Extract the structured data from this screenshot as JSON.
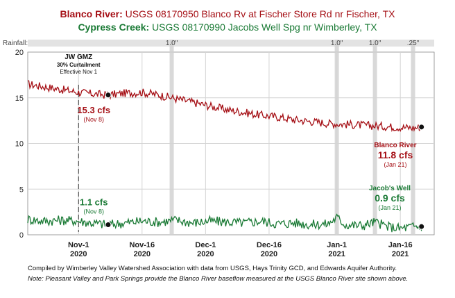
{
  "title": {
    "line1_name": "Blanco River:",
    "line1_text": "USGS 08170950 Blanco Rv at Fischer Store Rd nr Fischer, TX",
    "line2_name": "Cypress Creek:",
    "line2_text": "USGS 08170990 Jacobs Well Spg nr Wimberley, TX"
  },
  "colors": {
    "blanco": "#a50f15",
    "jacobs": "#1a7a35",
    "rain_band": "#cfcfcf",
    "rain_strip": "#e3e3e3",
    "grid": "#d4d4d4"
  },
  "notes": {
    "compiled": "Compiled by Wimberley Valley Watershed Association with data from USGS, Hays Trinity GCD, and Edwards Aquifer Authority.",
    "note_label": "Note:",
    "note_text": "Pleasant Valley and Park Springs provide the Blanco River baseflow measured at the USGS Blanco River site shown above."
  },
  "chart_data": {
    "type": "line",
    "x_unit": "date",
    "x_range": [
      "2020-10-20",
      "2021-01-24"
    ],
    "ylim": [
      0,
      20
    ],
    "y_ticks": [
      0,
      5,
      10,
      15,
      20
    ],
    "grid": true,
    "rainfall_label": "Rainfall:",
    "rain_events": [
      {
        "date": "2020-11-23",
        "label": "1.0\""
      },
      {
        "date": "2021-01-01",
        "label": "1.0\""
      },
      {
        "date": "2021-01-10",
        "label": "1.0\""
      },
      {
        "date": "2021-01-19",
        "label": ".25\""
      }
    ],
    "x_ticks": [
      {
        "date": "2020-11-01",
        "line1": "Nov-1",
        "line2": "2020"
      },
      {
        "date": "2020-11-16",
        "line1": "Nov-16",
        "line2": "2020"
      },
      {
        "date": "2020-12-01",
        "line1": "Dec-1",
        "line2": "2020"
      },
      {
        "date": "2020-12-16",
        "line1": "Dec-16",
        "line2": "2020"
      },
      {
        "date": "2021-01-01",
        "line1": "Jan-1",
        "line2": "2021"
      },
      {
        "date": "2021-01-16",
        "line1": "Jan-16",
        "line2": "2021"
      }
    ],
    "gmz_event": {
      "date": "2020-11-01",
      "title": "JW GMZ",
      "subtitle": "30% Curtailment",
      "detail": "Effective Nov 1"
    },
    "series": [
      {
        "name": "Blanco River",
        "color": "#a50f15",
        "points": [
          [
            "2020-10-20",
            16.5
          ],
          [
            "2020-10-24",
            16.2
          ],
          [
            "2020-10-28",
            15.9
          ],
          [
            "2020-11-01",
            15.6
          ],
          [
            "2020-11-05",
            15.4
          ],
          [
            "2020-11-08",
            15.3
          ],
          [
            "2020-11-12",
            15.5
          ],
          [
            "2020-11-16",
            15.6
          ],
          [
            "2020-11-20",
            15.3
          ],
          [
            "2020-11-24",
            14.9
          ],
          [
            "2020-11-28",
            14.5
          ],
          [
            "2020-12-02",
            14.1
          ],
          [
            "2020-12-06",
            13.7
          ],
          [
            "2020-12-10",
            13.4
          ],
          [
            "2020-12-14",
            13.1
          ],
          [
            "2020-12-18",
            12.9
          ],
          [
            "2020-12-22",
            12.6
          ],
          [
            "2020-12-26",
            12.4
          ],
          [
            "2020-12-30",
            12.2
          ],
          [
            "2021-01-03",
            12.1
          ],
          [
            "2021-01-07",
            12.0
          ],
          [
            "2021-01-11",
            11.9
          ],
          [
            "2021-01-15",
            11.8
          ],
          [
            "2021-01-19",
            11.7
          ],
          [
            "2021-01-21",
            11.8
          ]
        ]
      },
      {
        "name": "Jacob's Well",
        "color": "#1a7a35",
        "points": [
          [
            "2020-10-20",
            1.7
          ],
          [
            "2020-10-24",
            1.5
          ],
          [
            "2020-10-28",
            1.6
          ],
          [
            "2020-11-01",
            1.5
          ],
          [
            "2020-11-04",
            1.3
          ],
          [
            "2020-11-08",
            1.1
          ],
          [
            "2020-11-12",
            1.3
          ],
          [
            "2020-11-16",
            1.5
          ],
          [
            "2020-11-20",
            1.4
          ],
          [
            "2020-11-24",
            1.6
          ],
          [
            "2020-11-28",
            1.3
          ],
          [
            "2020-12-02",
            1.5
          ],
          [
            "2020-12-06",
            1.4
          ],
          [
            "2020-12-10",
            1.3
          ],
          [
            "2020-12-14",
            1.5
          ],
          [
            "2020-12-18",
            1.2
          ],
          [
            "2020-12-22",
            1.3
          ],
          [
            "2020-12-26",
            1.1
          ],
          [
            "2020-12-30",
            1.2
          ],
          [
            "2021-01-01",
            1.9
          ],
          [
            "2021-01-03",
            1.1
          ],
          [
            "2021-01-07",
            1.0
          ],
          [
            "2021-01-10",
            1.4
          ],
          [
            "2021-01-13",
            0.9
          ],
          [
            "2021-01-16",
            0.7
          ],
          [
            "2021-01-19",
            0.9
          ],
          [
            "2021-01-21",
            0.9
          ]
        ]
      }
    ],
    "annotations": [
      {
        "series": "Blanco River",
        "date": "2020-11-08",
        "value": 15.3,
        "label": "15.3 cfs",
        "sub": "(Nov 8)"
      },
      {
        "series": "Jacob's Well",
        "date": "2020-11-08",
        "value": 1.1,
        "label": "1.1 cfs",
        "sub": "(Nov 8)"
      },
      {
        "series": "Blanco River",
        "date": "2021-01-21",
        "value": 11.8,
        "name_label": "Blanco River",
        "label": "11.8 cfs",
        "sub": "(Jan 21)"
      },
      {
        "series": "Jacob's Well",
        "date": "2021-01-21",
        "value": 0.9,
        "name_label": "Jacob's Well",
        "label": "0.9 cfs",
        "sub": "(Jan 21)"
      }
    ]
  }
}
